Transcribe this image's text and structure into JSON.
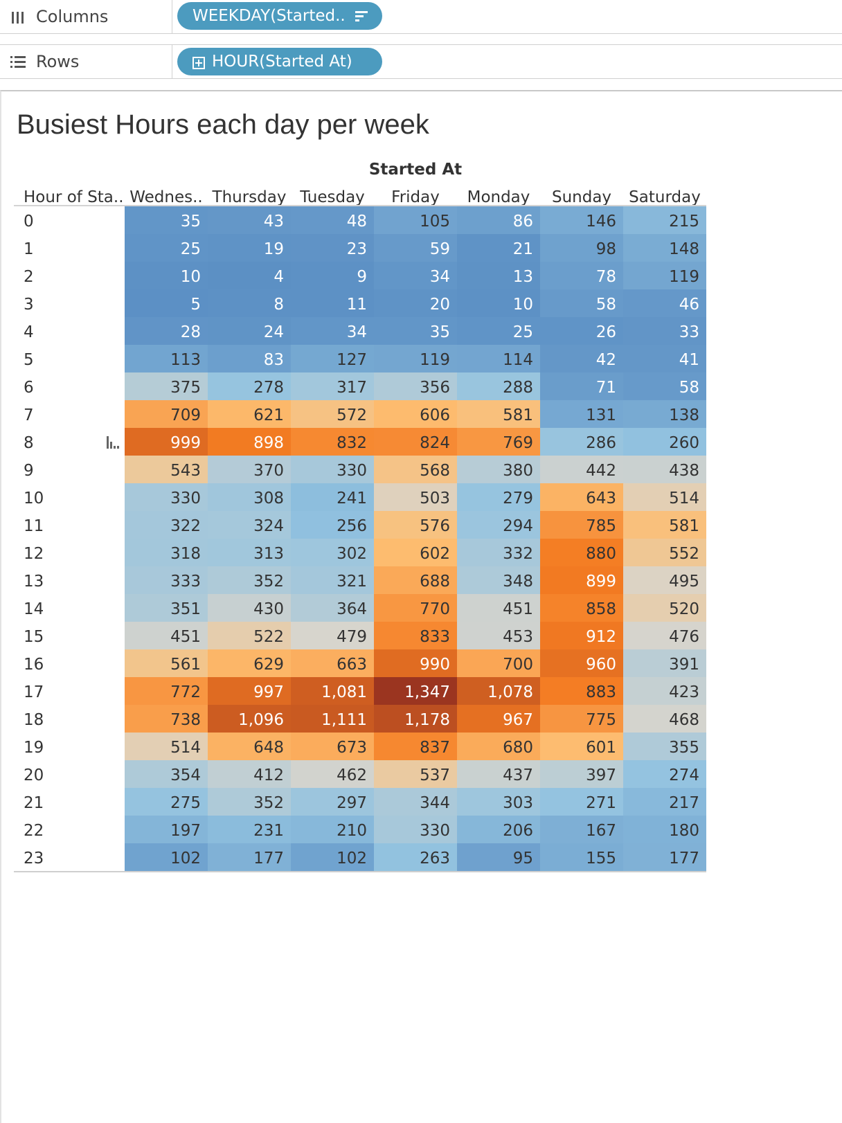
{
  "shelves": {
    "columns": {
      "label": "Columns",
      "icon": "columns-icon",
      "pill": "WEEKDAY(Started..",
      "pill_icon": "sort-icon"
    },
    "rows": {
      "label": "Rows",
      "icon": "rows-icon",
      "pill": "HOUR(Started At)",
      "pill_icon": "expand-plus-icon"
    }
  },
  "chart_data": {
    "type": "heatmap",
    "title": "Busiest Hours each day per week",
    "column_header": "Started At",
    "row_header": "Hour of Sta..",
    "columns": [
      "Wednes..",
      "Thursday",
      "Tuesday",
      "Friday",
      "Monday",
      "Sunday",
      "Saturday"
    ],
    "rows": [
      "0",
      "1",
      "2",
      "3",
      "4",
      "5",
      "6",
      "7",
      "8",
      "9",
      "10",
      "11",
      "12",
      "13",
      "14",
      "15",
      "16",
      "17",
      "18",
      "19",
      "20",
      "21",
      "22",
      "23"
    ],
    "values": [
      [
        35,
        43,
        48,
        105,
        86,
        146,
        215
      ],
      [
        25,
        19,
        23,
        59,
        21,
        98,
        148
      ],
      [
        10,
        4,
        9,
        34,
        13,
        78,
        119
      ],
      [
        5,
        8,
        11,
        20,
        10,
        58,
        46
      ],
      [
        28,
        24,
        34,
        35,
        25,
        26,
        33
      ],
      [
        113,
        83,
        127,
        119,
        114,
        42,
        41
      ],
      [
        375,
        278,
        317,
        356,
        288,
        71,
        58
      ],
      [
        709,
        621,
        572,
        606,
        581,
        131,
        138
      ],
      [
        999,
        898,
        832,
        824,
        769,
        286,
        260
      ],
      [
        543,
        370,
        330,
        568,
        380,
        442,
        438
      ],
      [
        330,
        308,
        241,
        503,
        279,
        643,
        514
      ],
      [
        322,
        324,
        256,
        576,
        294,
        785,
        581
      ],
      [
        318,
        313,
        302,
        602,
        332,
        880,
        552
      ],
      [
        333,
        352,
        321,
        688,
        348,
        899,
        495
      ],
      [
        351,
        430,
        364,
        770,
        451,
        858,
        520
      ],
      [
        451,
        522,
        479,
        833,
        453,
        912,
        476
      ],
      [
        561,
        629,
        663,
        990,
        700,
        960,
        391
      ],
      [
        772,
        997,
        1081,
        1347,
        1078,
        883,
        423
      ],
      [
        738,
        1096,
        1111,
        1178,
        967,
        775,
        468
      ],
      [
        514,
        648,
        673,
        837,
        680,
        601,
        355
      ],
      [
        354,
        412,
        462,
        537,
        437,
        397,
        274
      ],
      [
        275,
        352,
        297,
        344,
        303,
        271,
        217
      ],
      [
        197,
        231,
        210,
        330,
        206,
        167,
        180
      ],
      [
        102,
        177,
        102,
        263,
        95,
        155,
        177
      ]
    ],
    "color_scale": {
      "diverging": true,
      "stops": [
        "#5b8fc4",
        "#93c3e0",
        "#d9d5cc",
        "#fdbe72",
        "#f47c22",
        "#9b3520"
      ]
    }
  }
}
